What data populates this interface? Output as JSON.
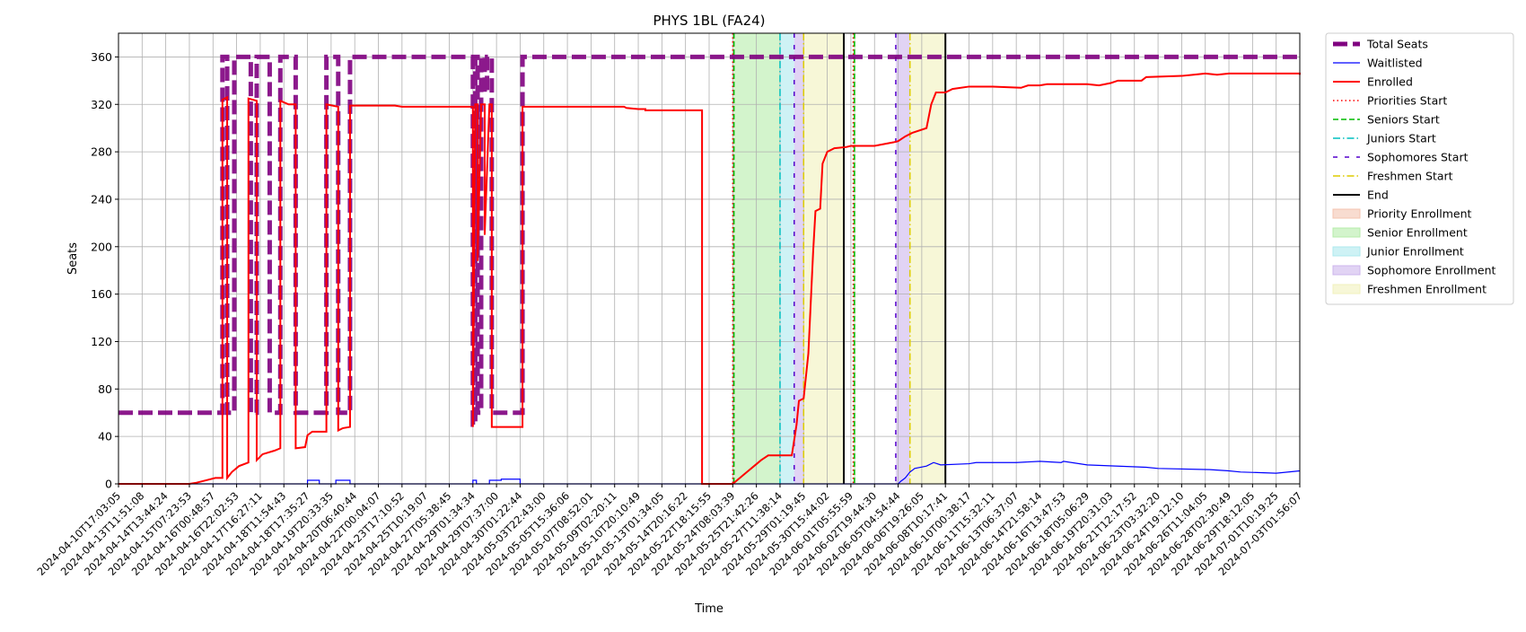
{
  "chart_data": {
    "type": "line",
    "title": "PHYS 1BL (FA24)",
    "xlabel": "Time",
    "ylabel": "Seats",
    "ylim": [
      0,
      380
    ],
    "yticks": [
      0,
      40,
      80,
      120,
      160,
      200,
      240,
      280,
      320,
      360
    ],
    "grid": true,
    "legend_placement": "outside top-right",
    "x_tick_labels": [
      "2024-04-10T17:03:05",
      "2024-04-13T11:51:08",
      "2024-04-14T13:44:24",
      "2024-04-15T07:23:53",
      "2024-04-16T00:48:57",
      "2024-04-16T22:02:53",
      "2024-04-17T16:27:11",
      "2024-04-18T11:54:43",
      "2024-04-18T17:35:27",
      "2024-04-19T20:33:35",
      "2024-04-20T06:40:44",
      "2024-04-22T00:04:07",
      "2024-04-23T17:10:52",
      "2024-04-25T10:19:07",
      "2024-04-27T05:38:45",
      "2024-04-29T01:34:34",
      "2024-04-29T07:37:00",
      "2024-04-30T01:22:44",
      "2024-05-03T22:43:00",
      "2024-05-05T15:36:06",
      "2024-05-07T08:52:01",
      "2024-05-09T02:20:11",
      "2024-05-10T20:10:49",
      "2024-05-13T01:34:05",
      "2024-05-14T20:16:22",
      "2024-05-22T18:15:55",
      "2024-05-24T08:03:39",
      "2024-05-25T21:42:26",
      "2024-05-27T11:38:14",
      "2024-05-29T01:19:45",
      "2024-05-30T15:44:02",
      "2024-06-01T05:55:59",
      "2024-06-02T19:44:30",
      "2024-06-05T04:54:44",
      "2024-06-06T19:26:05",
      "2024-06-08T10:17:41",
      "2024-06-10T00:38:17",
      "2024-06-11T15:32:11",
      "2024-06-13T06:37:07",
      "2024-06-14T21:58:14",
      "2024-06-16T13:47:53",
      "2024-06-18T05:06:29",
      "2024-06-19T20:31:03",
      "2024-06-21T12:17:52",
      "2024-06-23T03:32:20",
      "2024-06-24T19:12:10",
      "2024-06-26T11:04:05",
      "2024-06-28T02:30:49",
      "2024-06-29T18:12:05",
      "2024-07-01T10:19:25",
      "2024-07-03T01:56:07"
    ],
    "x_domain_ticks": [
      0,
      50
    ],
    "series": [
      {
        "name": "Total Seats",
        "color": "#800080",
        "style": "dashed-thick",
        "step": true,
        "points": [
          [
            0,
            60
          ],
          [
            4.4,
            60
          ],
          [
            4.4,
            360
          ],
          [
            4.6,
            360
          ],
          [
            4.6,
            60
          ],
          [
            4.9,
            60
          ],
          [
            4.9,
            360
          ],
          [
            5.6,
            360
          ],
          [
            5.6,
            60
          ],
          [
            5.85,
            60
          ],
          [
            5.85,
            360
          ],
          [
            6.4,
            360
          ],
          [
            6.4,
            60
          ],
          [
            6.85,
            60
          ],
          [
            6.85,
            360
          ],
          [
            7.5,
            360
          ],
          [
            7.5,
            60
          ],
          [
            8.8,
            60
          ],
          [
            8.8,
            360
          ],
          [
            9.3,
            360
          ],
          [
            9.3,
            60
          ],
          [
            9.8,
            60
          ],
          [
            9.8,
            360
          ],
          [
            15.0,
            360
          ],
          [
            15.0,
            50
          ],
          [
            15.1,
            50
          ],
          [
            15.1,
            360
          ],
          [
            15.2,
            360
          ],
          [
            15.2,
            60
          ],
          [
            15.35,
            60
          ],
          [
            15.35,
            360
          ],
          [
            15.5,
            360
          ],
          [
            15.5,
            330
          ],
          [
            15.6,
            330
          ],
          [
            15.6,
            360
          ],
          [
            15.8,
            360
          ],
          [
            15.8,
            60
          ],
          [
            17.1,
            60
          ],
          [
            17.1,
            360
          ],
          [
            50,
            360
          ]
        ]
      },
      {
        "name": "Waitlisted",
        "color": "#0000ff",
        "style": "solid-thin",
        "step": true,
        "points": [
          [
            0,
            0
          ],
          [
            8.0,
            0
          ],
          [
            8.0,
            3
          ],
          [
            8.5,
            3
          ],
          [
            8.5,
            0
          ],
          [
            9.2,
            0
          ],
          [
            9.2,
            3
          ],
          [
            9.8,
            3
          ],
          [
            9.8,
            0
          ],
          [
            15.0,
            0
          ],
          [
            15.0,
            3
          ],
          [
            15.15,
            3
          ],
          [
            15.15,
            0
          ],
          [
            15.7,
            0
          ],
          [
            15.7,
            3
          ],
          [
            16.2,
            3
          ],
          [
            16.2,
            4
          ],
          [
            17.0,
            4
          ],
          [
            17.0,
            0
          ],
          [
            33.0,
            0
          ],
          [
            33.1,
            2
          ],
          [
            33.3,
            5
          ],
          [
            33.5,
            10
          ],
          [
            33.7,
            13
          ],
          [
            34.2,
            15
          ],
          [
            34.5,
            18
          ],
          [
            34.8,
            16
          ],
          [
            36.0,
            17
          ],
          [
            36.3,
            18
          ],
          [
            38.0,
            18
          ],
          [
            39.0,
            19
          ],
          [
            39.9,
            18
          ],
          [
            40.0,
            19
          ],
          [
            41.0,
            16
          ],
          [
            43.5,
            14
          ],
          [
            44.0,
            13
          ],
          [
            46.2,
            12
          ],
          [
            47.0,
            11
          ],
          [
            47.5,
            10
          ],
          [
            49.0,
            9
          ],
          [
            50.0,
            11
          ]
        ]
      },
      {
        "name": "Enrolled",
        "color": "#ff0000",
        "style": "solid",
        "step": true,
        "points": [
          [
            0,
            0
          ],
          [
            3.0,
            0
          ],
          [
            3.3,
            1
          ],
          [
            3.7,
            3
          ],
          [
            4.1,
            5
          ],
          [
            4.4,
            5
          ],
          [
            4.4,
            324
          ],
          [
            4.6,
            326
          ],
          [
            4.6,
            5
          ],
          [
            4.8,
            10
          ],
          [
            5.1,
            15
          ],
          [
            5.5,
            18
          ],
          [
            5.5,
            325
          ],
          [
            5.85,
            323
          ],
          [
            5.85,
            20
          ],
          [
            6.1,
            25
          ],
          [
            6.6,
            28
          ],
          [
            6.85,
            30
          ],
          [
            6.85,
            323
          ],
          [
            7.2,
            320
          ],
          [
            7.5,
            320
          ],
          [
            7.5,
            30
          ],
          [
            7.9,
            31
          ],
          [
            8.0,
            41
          ],
          [
            8.2,
            44
          ],
          [
            8.8,
            44
          ],
          [
            8.8,
            320
          ],
          [
            9.3,
            318
          ],
          [
            9.3,
            45
          ],
          [
            9.5,
            47
          ],
          [
            9.8,
            48
          ],
          [
            9.8,
            319
          ],
          [
            11.7,
            319
          ],
          [
            12.0,
            318
          ],
          [
            15.0,
            318
          ],
          [
            15.0,
            48
          ],
          [
            15.1,
            320
          ],
          [
            15.2,
            320
          ],
          [
            15.2,
            188
          ],
          [
            15.35,
            320
          ],
          [
            15.5,
            320
          ],
          [
            15.5,
            210
          ],
          [
            15.7,
            320
          ],
          [
            15.8,
            320
          ],
          [
            15.8,
            48
          ],
          [
            17.1,
            48
          ],
          [
            17.1,
            318
          ],
          [
            21.4,
            318
          ],
          [
            21.5,
            317
          ],
          [
            22.0,
            316
          ],
          [
            22.3,
            316
          ],
          [
            22.3,
            315
          ],
          [
            24.7,
            315
          ],
          [
            24.7,
            0
          ],
          [
            26.0,
            0
          ],
          [
            26.3,
            5
          ],
          [
            26.6,
            10
          ],
          [
            26.9,
            15
          ],
          [
            27.2,
            20
          ],
          [
            27.5,
            24
          ],
          [
            28.5,
            24
          ],
          [
            28.7,
            50
          ],
          [
            28.8,
            70
          ],
          [
            29.0,
            72
          ],
          [
            29.2,
            110
          ],
          [
            29.4,
            195
          ],
          [
            29.5,
            230
          ],
          [
            29.7,
            232
          ],
          [
            29.8,
            270
          ],
          [
            30.0,
            280
          ],
          [
            30.3,
            283
          ],
          [
            30.8,
            284
          ],
          [
            31.0,
            285
          ],
          [
            32.0,
            285
          ],
          [
            32.8,
            288
          ],
          [
            33.0,
            289
          ],
          [
            33.3,
            293
          ],
          [
            33.6,
            296
          ],
          [
            34.2,
            300
          ],
          [
            34.4,
            320
          ],
          [
            34.6,
            330
          ],
          [
            35.0,
            330
          ],
          [
            35.3,
            333
          ],
          [
            36.0,
            335
          ],
          [
            37.0,
            335
          ],
          [
            38.2,
            334
          ],
          [
            38.5,
            336
          ],
          [
            39.0,
            336
          ],
          [
            39.3,
            337
          ],
          [
            41.0,
            337
          ],
          [
            41.5,
            336
          ],
          [
            42.0,
            338
          ],
          [
            42.3,
            340
          ],
          [
            43.3,
            340
          ],
          [
            43.5,
            343
          ],
          [
            45.0,
            344
          ],
          [
            45.5,
            345
          ],
          [
            46.0,
            346
          ],
          [
            46.5,
            345
          ],
          [
            47.0,
            346
          ],
          [
            50.0,
            346
          ],
          [
            50.0,
            345
          ]
        ]
      }
    ],
    "markers": [
      {
        "name": "Priorities Start",
        "color": "#ff0000",
        "style": "dotted",
        "x": 26.0
      },
      {
        "name": "Seniors Start",
        "color": "#00bb00",
        "style": "dashed",
        "x": 26.05
      },
      {
        "name": "Juniors Start",
        "color": "#00bfbf",
        "style": "dashdot",
        "x": 28.0
      },
      {
        "name": "Sophomores Start",
        "color": "#5500cc",
        "style": "loosedash",
        "x": 28.6
      },
      {
        "name": "Freshmen Start",
        "color": "#ddcc00",
        "style": "dashdot",
        "x": 29.0
      },
      {
        "name": "End",
        "color": "#000000",
        "style": "solid",
        "x": 30.7
      },
      {
        "name": "",
        "color": "#ff0000",
        "style": "dotted",
        "x": 31.1
      },
      {
        "name": "",
        "color": "#00bb00",
        "style": "dashed",
        "x": 31.15
      },
      {
        "name": "",
        "color": "#5500cc",
        "style": "loosedash",
        "x": 32.9
      },
      {
        "name": "",
        "color": "#ddcc00",
        "style": "dashdot",
        "x": 33.5
      },
      {
        "name": "",
        "color": "#000000",
        "style": "solid",
        "x": 35.0
      }
    ],
    "bands": [
      {
        "name": "Priority Enrollment",
        "color": "#f4c5b0",
        "from": 26.0,
        "to": 26.05
      },
      {
        "name": "Senior Enrollment",
        "color": "#b5ecaa",
        "from": 26.05,
        "to": 28.0
      },
      {
        "name": "Junior Enrollment",
        "color": "#aee9ee",
        "from": 28.0,
        "to": 28.6
      },
      {
        "name": "Sophomore Enrollment",
        "color": "#cdb5ec",
        "from": 28.6,
        "to": 29.0
      },
      {
        "name": "Freshmen Enrollment",
        "color": "#f2f2bd",
        "from": 29.0,
        "to": 30.7
      },
      {
        "name": "",
        "color": "#f4c5b0",
        "from": 31.1,
        "to": 31.15
      },
      {
        "name": "",
        "color": "#b5ecaa",
        "from": 31.15,
        "to": 31.2
      },
      {
        "name": "",
        "color": "#cdb5ec",
        "from": 32.9,
        "to": 33.5
      },
      {
        "name": "",
        "color": "#f2f2bd",
        "from": 33.5,
        "to": 35.0
      }
    ],
    "legend": [
      {
        "label": "Total Seats",
        "kind": "line",
        "color": "#800080",
        "style": "dashed-thick"
      },
      {
        "label": "Waitlisted",
        "kind": "line",
        "color": "#0000ff",
        "style": "solid-thin"
      },
      {
        "label": "Enrolled",
        "kind": "line",
        "color": "#ff0000",
        "style": "solid"
      },
      {
        "label": "Priorities Start",
        "kind": "line",
        "color": "#ff0000",
        "style": "dotted"
      },
      {
        "label": "Seniors Start",
        "kind": "line",
        "color": "#00bb00",
        "style": "dashed"
      },
      {
        "label": "Juniors Start",
        "kind": "line",
        "color": "#00bfbf",
        "style": "dashdot"
      },
      {
        "label": "Sophomores Start",
        "kind": "line",
        "color": "#5500cc",
        "style": "loosedash"
      },
      {
        "label": "Freshmen Start",
        "kind": "line",
        "color": "#ddcc00",
        "style": "dashdot"
      },
      {
        "label": "End",
        "kind": "line",
        "color": "#000000",
        "style": "solid"
      },
      {
        "label": "Priority Enrollment",
        "kind": "patch",
        "color": "#f4c5b0"
      },
      {
        "label": "Senior Enrollment",
        "kind": "patch",
        "color": "#b5ecaa"
      },
      {
        "label": "Junior Enrollment",
        "kind": "patch",
        "color": "#aee9ee"
      },
      {
        "label": "Sophomore Enrollment",
        "kind": "patch",
        "color": "#cdb5ec"
      },
      {
        "label": "Freshmen Enrollment",
        "kind": "patch",
        "color": "#f2f2bd"
      }
    ]
  }
}
